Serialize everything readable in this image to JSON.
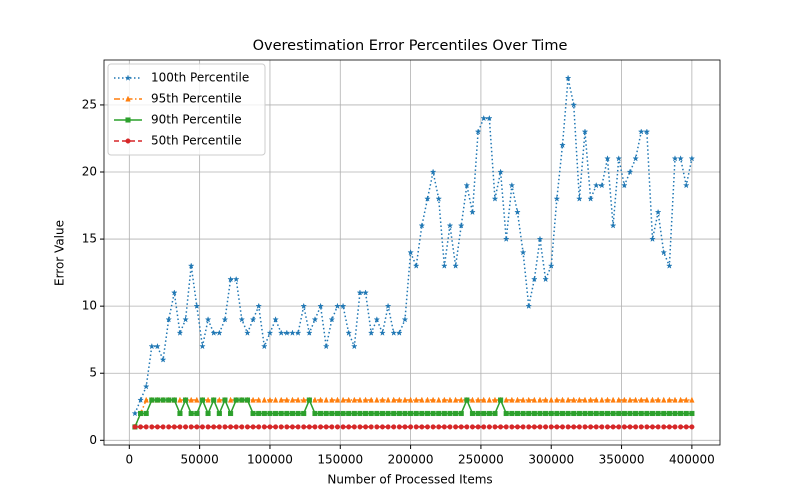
{
  "chart_data": {
    "type": "line",
    "title": "Overestimation Error Percentiles Over Time",
    "x_label": "Number of Processed Items",
    "y_label": "Error Value",
    "x": [
      4000,
      8000,
      12000,
      16000,
      20000,
      24000,
      28000,
      32000,
      36000,
      40000,
      44000,
      48000,
      52000,
      56000,
      60000,
      64000,
      68000,
      72000,
      76000,
      80000,
      84000,
      88000,
      92000,
      96000,
      100000,
      104000,
      108000,
      112000,
      116000,
      120000,
      124000,
      128000,
      132000,
      136000,
      140000,
      144000,
      148000,
      152000,
      156000,
      160000,
      164000,
      168000,
      172000,
      176000,
      180000,
      184000,
      188000,
      192000,
      196000,
      200000,
      204000,
      208000,
      212000,
      216000,
      220000,
      224000,
      228000,
      232000,
      236000,
      240000,
      244000,
      248000,
      252000,
      256000,
      260000,
      264000,
      268000,
      272000,
      276000,
      280000,
      284000,
      288000,
      292000,
      296000,
      300000,
      304000,
      308000,
      312000,
      316000,
      320000,
      324000,
      328000,
      332000,
      336000,
      340000,
      344000,
      348000,
      352000,
      356000,
      360000,
      364000,
      368000,
      372000,
      376000,
      380000,
      384000,
      388000,
      392000,
      396000,
      400000
    ],
    "series": [
      {
        "name": "100th Percentile",
        "color": "#1f77b4",
        "linestyle": "dotted",
        "marker": "star",
        "values": [
          2,
          3,
          4,
          7,
          7,
          6,
          9,
          11,
          8,
          9,
          13,
          10,
          7,
          9,
          8,
          8,
          9,
          12,
          12,
          9,
          8,
          9,
          10,
          7,
          8,
          9,
          8,
          8,
          8,
          8,
          10,
          8,
          9,
          10,
          7,
          9,
          10,
          10,
          8,
          7,
          11,
          11,
          8,
          9,
          8,
          10,
          8,
          8,
          9,
          14,
          13,
          16,
          18,
          20,
          18,
          13,
          16,
          13,
          16,
          19,
          17,
          23,
          24,
          24,
          18,
          20,
          15,
          19,
          17,
          14,
          10,
          12,
          15,
          12,
          13,
          18,
          22,
          27,
          25,
          18,
          23,
          18,
          19,
          19,
          21,
          16,
          21,
          19,
          20,
          21,
          23,
          23,
          15,
          17,
          14,
          13,
          21,
          21,
          19,
          21
        ]
      },
      {
        "name": "95th Percentile",
        "color": "#ff7f0e",
        "linestyle": "dashdot",
        "marker": "triangle",
        "values": [
          1,
          2,
          3,
          3,
          3,
          3,
          3,
          3,
          3,
          3,
          3,
          3,
          3,
          3,
          3,
          3,
          3,
          3,
          3,
          3,
          3,
          3,
          3,
          3,
          3,
          3,
          3,
          3,
          3,
          3,
          3,
          3,
          3,
          3,
          3,
          3,
          3,
          3,
          3,
          3,
          3,
          3,
          3,
          3,
          3,
          3,
          3,
          3,
          3,
          3,
          3,
          3,
          3,
          3,
          3,
          3,
          3,
          3,
          3,
          3,
          3,
          3,
          3,
          3,
          3,
          3,
          3,
          3,
          3,
          3,
          3,
          3,
          3,
          3,
          3,
          3,
          3,
          3,
          3,
          3,
          3,
          3,
          3,
          3,
          3,
          3,
          3,
          3,
          3,
          3,
          3,
          3,
          3,
          3,
          3,
          3,
          3,
          3,
          3,
          3
        ]
      },
      {
        "name": "90th Percentile",
        "color": "#2ca02c",
        "linestyle": "solid",
        "marker": "square",
        "values": [
          1,
          2,
          2,
          3,
          3,
          3,
          3,
          3,
          2,
          3,
          2,
          2,
          3,
          2,
          3,
          2,
          3,
          2,
          3,
          3,
          3,
          2,
          2,
          2,
          2,
          2,
          2,
          2,
          2,
          2,
          2,
          3,
          2,
          2,
          2,
          2,
          2,
          2,
          2,
          2,
          2,
          2,
          2,
          2,
          2,
          2,
          2,
          2,
          2,
          2,
          2,
          2,
          2,
          2,
          2,
          2,
          2,
          2,
          2,
          3,
          2,
          2,
          2,
          2,
          2,
          3,
          2,
          2,
          2,
          2,
          2,
          2,
          2,
          2,
          2,
          2,
          2,
          2,
          2,
          2,
          2,
          2,
          2,
          2,
          2,
          2,
          2,
          2,
          2,
          2,
          2,
          2,
          2,
          2,
          2,
          2,
          2,
          2,
          2,
          2
        ]
      },
      {
        "name": "50th Percentile",
        "color": "#d62728",
        "linestyle": "dashed",
        "marker": "circle",
        "values": [
          1,
          1,
          1,
          1,
          1,
          1,
          1,
          1,
          1,
          1,
          1,
          1,
          1,
          1,
          1,
          1,
          1,
          1,
          1,
          1,
          1,
          1,
          1,
          1,
          1,
          1,
          1,
          1,
          1,
          1,
          1,
          1,
          1,
          1,
          1,
          1,
          1,
          1,
          1,
          1,
          1,
          1,
          1,
          1,
          1,
          1,
          1,
          1,
          1,
          1,
          1,
          1,
          1,
          1,
          1,
          1,
          1,
          1,
          1,
          1,
          1,
          1,
          1,
          1,
          1,
          1,
          1,
          1,
          1,
          1,
          1,
          1,
          1,
          1,
          1,
          1,
          1,
          1,
          1,
          1,
          1,
          1,
          1,
          1,
          1,
          1,
          1,
          1,
          1,
          1,
          1,
          1,
          1,
          1,
          1,
          1,
          1,
          1,
          1,
          1
        ]
      }
    ],
    "xlim": [
      -18000,
      420000
    ],
    "xticks": [
      0,
      50000,
      100000,
      150000,
      200000,
      250000,
      300000,
      350000,
      400000
    ],
    "ylim": [
      -0.35,
      28.35
    ],
    "yticks": [
      0,
      5,
      10,
      15,
      20,
      25
    ],
    "grid": true,
    "legend": "upper left"
  }
}
